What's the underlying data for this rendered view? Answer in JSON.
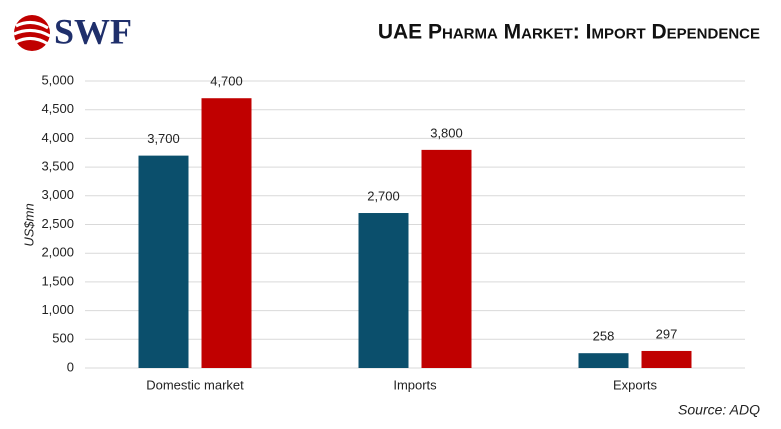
{
  "logo": "SWF",
  "chart_data": {
    "type": "bar",
    "title": "UAE Pharma Market: Import Dependence",
    "y_label": "US$mn",
    "source": "Source: ADQ",
    "categories": [
      "Domestic market",
      "Imports",
      "Exports"
    ],
    "series": [
      {
        "color": "#0b4f6c",
        "values": [
          3700,
          2700,
          258
        ],
        "value_labels": [
          "3,700",
          "2,700",
          "258"
        ]
      },
      {
        "color": "#c00000",
        "values": [
          4700,
          3800,
          297
        ],
        "value_labels": [
          "4,700",
          "3,800",
          "297"
        ]
      }
    ],
    "ylim": [
      0,
      5000
    ],
    "yticks": [
      0,
      500,
      {
        "value": 1000,
        "label": "1,000"
      },
      {
        "value": 1500,
        "label": "1,500"
      },
      {
        "value": 2000,
        "label": "2,000"
      },
      {
        "value": 2500,
        "label": "2,500"
      },
      {
        "value": 3000,
        "label": "3,000"
      },
      {
        "value": 3500,
        "label": "3,500"
      },
      {
        "value": 4000,
        "label": "4,000"
      },
      {
        "value": 4500,
        "label": "4,500"
      },
      {
        "value": 5000,
        "label": "5,000"
      }
    ],
    "grid": true
  }
}
